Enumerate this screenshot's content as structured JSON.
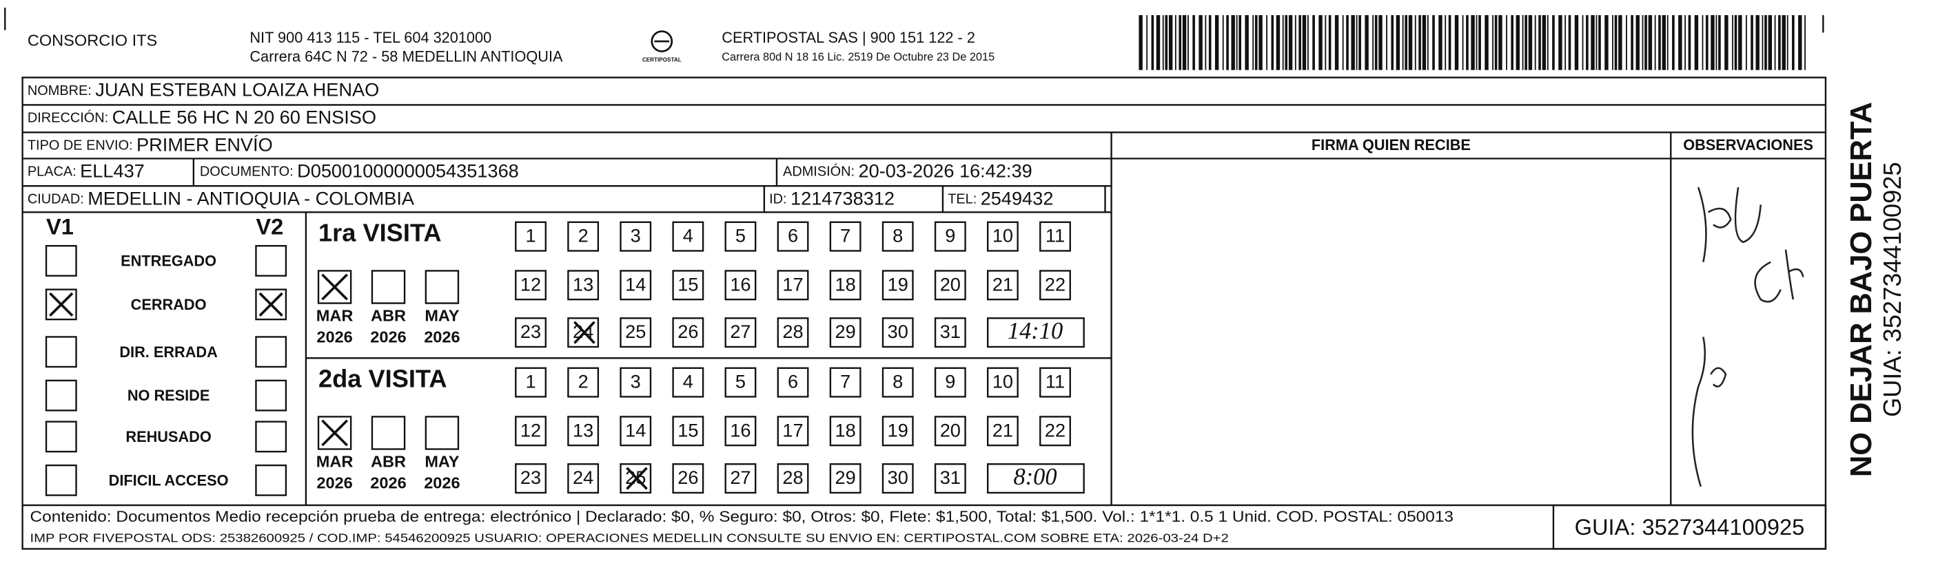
{
  "header": {
    "company": "CONSORCIO ITS",
    "nit": "NIT 900 413 115 - TEL 604 3201000",
    "address": "Carrera 64C N 72 - 58 MEDELLIN ANTIOQUIA",
    "logo_text": "CERTIPOSTAL",
    "courier": "CERTIPOSTAL SAS | 900 151 122 - 2",
    "courier_address": "Carrera 80d N 18 16  Lic. 2519 De Octubre 23 De 2015"
  },
  "fields": {
    "name": {
      "label": "NOMBRE:",
      "value": "JUAN ESTEBAN LOAIZA HENAO"
    },
    "address": {
      "label": "DIRECCIÓN:",
      "value": "CALLE 56 HC N 20 60 ENSISO"
    },
    "shipment_type": {
      "label": "TIPO DE ENVIO:",
      "value": "PRIMER ENVÍO"
    },
    "plate": {
      "label": "PLACA:",
      "value": "ELL437"
    },
    "document": {
      "label": "DOCUMENTO:",
      "value": "D05001000000054351368"
    },
    "admission": {
      "label": "ADMISIÓN:",
      "value": "20-03-2026 16:42:39"
    },
    "city": {
      "label": "CIUDAD:",
      "value": "MEDELLIN - ANTIOQUIA - COLOMBIA"
    },
    "id": {
      "label": "ID:",
      "value": "1214738312"
    },
    "phone": {
      "label": "TEL:",
      "value": "2549432"
    }
  },
  "columns": {
    "signature": "FIRMA QUIEN RECIBE",
    "observations": "OBSERVACIONES"
  },
  "status": {
    "v1": "V1",
    "v2": "V2",
    "options": [
      {
        "label": "ENTREGADO",
        "v1": false,
        "v2": false
      },
      {
        "label": "CERRADO",
        "v1": true,
        "v2": true
      },
      {
        "label": "DIR. ERRADA",
        "v1": false,
        "v2": false
      },
      {
        "label": "NO RESIDE",
        "v1": false,
        "v2": false
      },
      {
        "label": "REHUSADO",
        "v1": false,
        "v2": false
      },
      {
        "label": "DIFICIL ACCESO",
        "v1": false,
        "v2": false
      }
    ]
  },
  "visits": [
    {
      "title": "1ra VISITA",
      "months": [
        {
          "label": "MAR",
          "year": "2026",
          "checked": true
        },
        {
          "label": "ABR",
          "year": "2026",
          "checked": false
        },
        {
          "label": "MAY",
          "year": "2026",
          "checked": false
        }
      ],
      "days": [
        "1",
        "2",
        "3",
        "4",
        "5",
        "6",
        "7",
        "8",
        "9",
        "10",
        "11",
        "12",
        "13",
        "14",
        "15",
        "16",
        "17",
        "18",
        "19",
        "20",
        "21",
        "22",
        "23",
        "24",
        "25",
        "26",
        "27",
        "28",
        "29",
        "30",
        "31"
      ],
      "crossed_day": "24",
      "time": "14:10"
    },
    {
      "title": "2da VISITA",
      "months": [
        {
          "label": "MAR",
          "year": "2026",
          "checked": true
        },
        {
          "label": "ABR",
          "year": "2026",
          "checked": false
        },
        {
          "label": "MAY",
          "year": "2026",
          "checked": false
        }
      ],
      "days": [
        "1",
        "2",
        "3",
        "4",
        "5",
        "6",
        "7",
        "8",
        "9",
        "10",
        "11",
        "12",
        "13",
        "14",
        "15",
        "16",
        "17",
        "18",
        "19",
        "20",
        "21",
        "22",
        "23",
        "24",
        "25",
        "26",
        "27",
        "28",
        "29",
        "30",
        "31"
      ],
      "crossed_day": "25",
      "time": "8:00"
    }
  ],
  "side": {
    "notice": "NO DEJAR BAJO PUERTA",
    "guide": "GUIA: 3527344100925"
  },
  "footer": {
    "content": "Contenido: Documentos Medio recepción prueba de entrega: electrónico | Declarado: $0, % Seguro: $0, Otros: $0, Flete: $1,500, Total: $1,500. Vol.: 1*1*1. 0.5  1 Unid. COD. POSTAL: 050013",
    "print_info": "IMP POR FIVEPOSTAL ODS: 25382600925 / COD.IMP: 54546200925 USUARIO: OPERACIONES MEDELLIN CONSULTE SU ENVIO EN: CERTIPOSTAL.COM SOBRE ETA: 2026-03-24 D+2",
    "guide": "GUIA: 3527344100925"
  }
}
